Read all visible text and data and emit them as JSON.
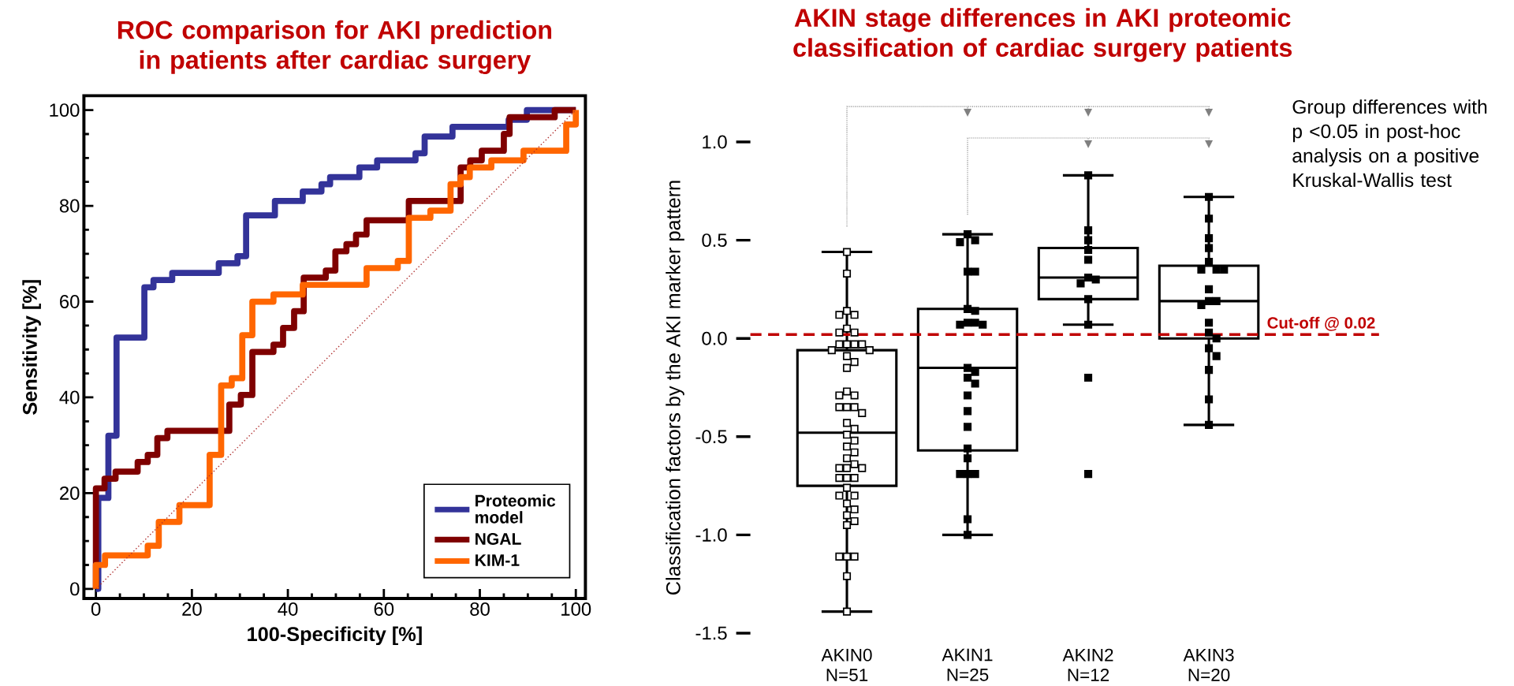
{
  "chart_data": [
    {
      "type": "step",
      "title": "ROC comparison for AKI prediction in patients after cardiac surgery",
      "xlabel": "100-Specificity [%]",
      "ylabel": "Sensitivity [%]",
      "xlim": [
        -2.5,
        102
      ],
      "ylim": [
        -2,
        103
      ],
      "xticks": [
        0,
        20,
        40,
        60,
        80,
        100
      ],
      "yticks": [
        0,
        20,
        40,
        60,
        80,
        100
      ],
      "legend": "bottom right",
      "series": [
        {
          "name": "Proteomic model",
          "color": "#333399",
          "x": [
            0,
            0.5,
            2.6,
            4.3,
            10.1,
            12,
            15.9,
            25.6,
            29.5,
            31.3,
            37.3,
            43.1,
            47,
            48.8,
            54.9,
            58.6,
            66.6,
            68.5,
            74.3,
            86,
            89.8,
            100
          ],
          "values": [
            0,
            19,
            32,
            52.5,
            63,
            64.5,
            66,
            68,
            69.5,
            78,
            81,
            83,
            84.5,
            86,
            88,
            89.5,
            91,
            94.5,
            96.5,
            98,
            100,
            100
          ]
        },
        {
          "name": "NGAL",
          "color": "#7f0000",
          "x": [
            0,
            0,
            1.8,
            4.1,
            8.7,
            10.8,
            12.8,
            14.9,
            27.8,
            30.2,
            32.6,
            37,
            39,
            41.3,
            43.3,
            47.9,
            49.9,
            52.2,
            54.2,
            56.4,
            65.2,
            76,
            78,
            80.4,
            85,
            86.2,
            95.6,
            100
          ],
          "values": [
            0,
            21,
            23,
            24.5,
            26.5,
            28,
            31.5,
            33,
            38.5,
            40.5,
            49.5,
            51,
            54.5,
            58,
            65,
            66.5,
            70.5,
            72,
            74,
            77,
            81,
            88,
            89.5,
            91.5,
            95,
            98.5,
            100,
            100
          ]
        },
        {
          "name": "KIM-1",
          "color": "#ff6600",
          "x": [
            0,
            0,
            1.9,
            10.8,
            13.1,
            17.4,
            23.7,
            26.1,
            28.3,
            30.5,
            32.6,
            37,
            43.1,
            56.4,
            62.9,
            65.2,
            69.7,
            73.9,
            76,
            77.9,
            82.4,
            89.1,
            98,
            100
          ],
          "values": [
            0,
            5,
            7,
            9,
            14,
            17.5,
            28,
            42.5,
            44,
            53,
            60,
            61.5,
            63.5,
            67,
            68.5,
            77.5,
            79,
            84.5,
            86,
            88,
            89.5,
            91.5,
            97,
            100
          ]
        },
        {
          "type": "line",
          "color": "#b03030",
          "line_style": "dotted",
          "x": [
            0,
            100
          ],
          "values": [
            0,
            100
          ]
        }
      ]
    },
    {
      "type": "box",
      "title": "AKIN stage differences in AKI proteomic classification of cardiac surgery patients",
      "ylabel": "Classification factors by the AKI marker pattern",
      "categories": [
        "AKIN0 N=51",
        "AKIN1 N=25",
        "AKIN2 N=12",
        "AKIN3 N=20"
      ],
      "ylim": [
        -1.5,
        1.0
      ],
      "yticks": [
        {
          "value": 1,
          "label": "1.0"
        },
        {
          "value": 0.5,
          "label": "0.5"
        },
        {
          "value": 0,
          "label": "0.0"
        },
        {
          "value": -0.5,
          "label": "-0.5"
        },
        {
          "value": -1,
          "label": "-1.0"
        },
        {
          "value": -1.5,
          "label": "-1.5"
        }
      ],
      "marker": "square",
      "boxes": [
        {
          "low": -1.39,
          "q1": -0.75,
          "median": -0.48,
          "q3": -0.06,
          "high": 0.44
        },
        {
          "low": -1.0,
          "q1": -0.57,
          "median": -0.15,
          "q3": 0.15,
          "high": 0.53
        },
        {
          "low": 0.07,
          "q1": 0.2,
          "median": 0.31,
          "q3": 0.46,
          "high": 0.83
        },
        {
          "low": -0.44,
          "q1": 0.0,
          "median": 0.19,
          "q3": 0.37,
          "high": 0.72
        }
      ],
      "ref_lines": [
        {
          "axis": "y",
          "value": 0.02,
          "label": "Cut-off @ 0.02",
          "color": "#c00000",
          "line_style": "dashed"
        }
      ],
      "annotations": [
        "Group differences with p <0.05 in post-hoc analysis on a positive Kruskal-Wallis test"
      ],
      "series": [
        {
          "type": "scatter",
          "color": "#ffffff",
          "x": [
            "AKIN0 N=51",
            "AKIN0 N=51",
            "AKIN0 N=51",
            "AKIN0 N=51",
            "AKIN0 N=51",
            "AKIN0 N=51",
            "AKIN0 N=51",
            "AKIN0 N=51",
            "AKIN0 N=51",
            "AKIN0 N=51",
            "AKIN0 N=51",
            "AKIN0 N=51",
            "AKIN0 N=51",
            "AKIN0 N=51",
            "AKIN0 N=51",
            "AKIN0 N=51",
            "AKIN0 N=51",
            "AKIN0 N=51",
            "AKIN0 N=51",
            "AKIN0 N=51",
            "AKIN0 N=51",
            "AKIN0 N=51",
            "AKIN0 N=51",
            "AKIN0 N=51",
            "AKIN0 N=51",
            "AKIN0 N=51",
            "AKIN0 N=51",
            "AKIN0 N=51",
            "AKIN0 N=51",
            "AKIN0 N=51",
            "AKIN0 N=51",
            "AKIN0 N=51",
            "AKIN0 N=51",
            "AKIN0 N=51",
            "AKIN0 N=51",
            "AKIN0 N=51",
            "AKIN0 N=51",
            "AKIN0 N=51",
            "AKIN0 N=51",
            "AKIN0 N=51",
            "AKIN0 N=51",
            "AKIN0 N=51",
            "AKIN0 N=51",
            "AKIN0 N=51",
            "AKIN0 N=51",
            "AKIN0 N=51",
            "AKIN0 N=51",
            "AKIN0 N=51",
            "AKIN0 N=51",
            "AKIN0 N=51",
            "AKIN0 N=51"
          ],
          "values": [
            0.44,
            0.33,
            0.14,
            0.12,
            0.12,
            0.05,
            0.03,
            0.03,
            -0.03,
            -0.03,
            -0.03,
            -0.03,
            -0.06,
            -0.06,
            -0.09,
            -0.12,
            -0.15,
            -0.27,
            -0.29,
            -0.29,
            -0.35,
            -0.35,
            -0.35,
            -0.38,
            -0.43,
            -0.46,
            -0.49,
            -0.52,
            -0.55,
            -0.58,
            -0.61,
            -0.64,
            -0.66,
            -0.66,
            -0.66,
            -0.71,
            -0.71,
            -0.71,
            -0.76,
            -0.8,
            -0.8,
            -0.84,
            -0.87,
            -0.9,
            -0.93,
            -0.95,
            -1.11,
            -1.11,
            -1.11,
            -1.21,
            -1.39
          ]
        },
        {
          "type": "scatter",
          "color": "#000000",
          "x": [
            "AKIN1 N=25",
            "AKIN1 N=25",
            "AKIN1 N=25",
            "AKIN1 N=25",
            "AKIN1 N=25",
            "AKIN1 N=25",
            "AKIN1 N=25",
            "AKIN1 N=25",
            "AKIN1 N=25",
            "AKIN1 N=25",
            "AKIN1 N=25",
            "AKIN1 N=25",
            "AKIN1 N=25",
            "AKIN1 N=25",
            "AKIN1 N=25",
            "AKIN1 N=25",
            "AKIN1 N=25",
            "AKIN1 N=25",
            "AKIN1 N=25",
            "AKIN1 N=25",
            "AKIN1 N=25",
            "AKIN1 N=25",
            "AKIN1 N=25",
            "AKIN1 N=25",
            "AKIN1 N=25",
            "AKIN2 N=12",
            "AKIN2 N=12",
            "AKIN2 N=12",
            "AKIN2 N=12",
            "AKIN2 N=12",
            "AKIN2 N=12",
            "AKIN2 N=12",
            "AKIN2 N=12",
            "AKIN2 N=12",
            "AKIN2 N=12",
            "AKIN2 N=12",
            "AKIN2 N=12",
            "AKIN3 N=20",
            "AKIN3 N=20",
            "AKIN3 N=20",
            "AKIN3 N=20",
            "AKIN3 N=20",
            "AKIN3 N=20",
            "AKIN3 N=20",
            "AKIN3 N=20",
            "AKIN3 N=20",
            "AKIN3 N=20",
            "AKIN3 N=20",
            "AKIN3 N=20",
            "AKIN3 N=20",
            "AKIN3 N=20",
            "AKIN3 N=20",
            "AKIN3 N=20",
            "AKIN3 N=20",
            "AKIN3 N=20",
            "AKIN3 N=20",
            "AKIN3 N=20"
          ],
          "values": [
            0.53,
            0.5,
            0.49,
            0.34,
            0.34,
            0.15,
            0.14,
            0.08,
            0.08,
            0.07,
            0.07,
            -0.15,
            -0.17,
            -0.2,
            -0.23,
            -0.29,
            -0.37,
            -0.45,
            -0.56,
            -0.61,
            -0.69,
            -0.69,
            -0.69,
            -0.92,
            -1.0,
            0.83,
            0.55,
            0.5,
            0.45,
            0.4,
            0.31,
            0.3,
            0.28,
            0.2,
            0.07,
            -0.2,
            -0.69,
            0.72,
            0.61,
            0.51,
            0.46,
            0.39,
            0.35,
            0.35,
            0.35,
            0.25,
            0.19,
            0.19,
            0.17,
            0.08,
            0.03,
            0.0,
            -0.05,
            -0.09,
            -0.16,
            -0.31,
            -0.44
          ]
        }
      ]
    }
  ]
}
